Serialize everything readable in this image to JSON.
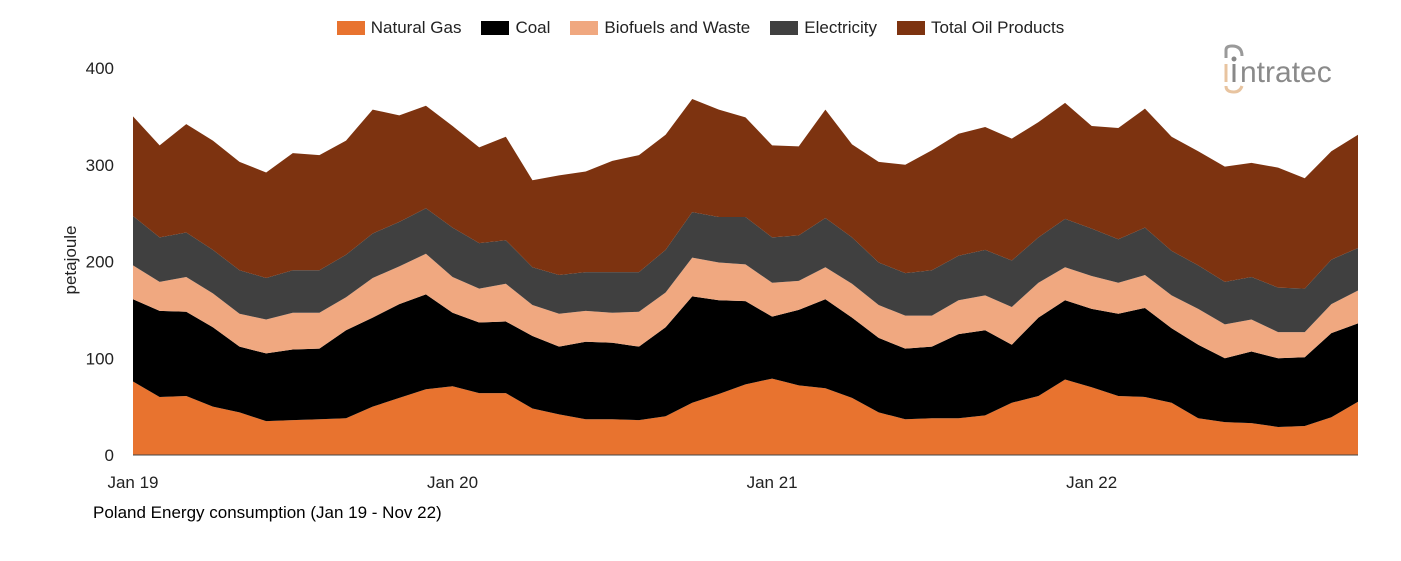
{
  "chart_data": {
    "type": "area",
    "stacked": true,
    "caption": "Poland Energy consumption (Jan 19 - Nov 22)",
    "ylabel": "petajoule",
    "xlabel": "",
    "ylim": [
      0,
      400
    ],
    "yticks": [
      0,
      100,
      200,
      300,
      400
    ],
    "xtick_labels": [
      "Jan 19",
      "Jan 20",
      "Jan 21",
      "Jan 22"
    ],
    "grid": false,
    "legend_position": "top",
    "categories": [
      "Jan 19",
      "Feb 19",
      "Mar 19",
      "Apr 19",
      "May 19",
      "Jun 19",
      "Jul 19",
      "Aug 19",
      "Sep 19",
      "Oct 19",
      "Nov 19",
      "Dec 19",
      "Jan 20",
      "Feb 20",
      "Mar 20",
      "Apr 20",
      "May 20",
      "Jun 20",
      "Jul 20",
      "Aug 20",
      "Sep 20",
      "Oct 20",
      "Nov 20",
      "Dec 20",
      "Jan 21",
      "Feb 21",
      "Mar 21",
      "Apr 21",
      "May 21",
      "Jun 21",
      "Jul 21",
      "Aug 21",
      "Sep 21",
      "Oct 21",
      "Nov 21",
      "Dec 21",
      "Jan 22",
      "Feb 22",
      "Mar 22",
      "Apr 22",
      "May 22",
      "Jun 22",
      "Jul 22",
      "Aug 22",
      "Sep 22",
      "Oct 22",
      "Nov 22"
    ],
    "series": [
      {
        "name": "Natural Gas",
        "color": "#E8732F",
        "values": [
          76,
          60,
          61,
          50,
          44,
          35,
          36,
          37,
          38,
          50,
          59,
          68,
          71,
          64,
          64,
          48,
          42,
          37,
          37,
          36,
          40,
          54,
          63,
          73,
          79,
          72,
          69,
          59,
          44,
          37,
          38,
          38,
          41,
          54,
          61,
          78,
          70,
          61,
          60,
          54,
          38,
          34,
          33,
          29,
          30,
          39,
          55
        ]
      },
      {
        "name": "Coal",
        "color": "#000000",
        "values": [
          85,
          89,
          87,
          82,
          68,
          70,
          73,
          73,
          91,
          92,
          97,
          98,
          76,
          73,
          74,
          75,
          70,
          80,
          79,
          76,
          92,
          110,
          97,
          86,
          64,
          78,
          92,
          83,
          77,
          73,
          74,
          87,
          88,
          60,
          81,
          82,
          81,
          85,
          92,
          77,
          76,
          66,
          74,
          71,
          71,
          87,
          81
        ]
      },
      {
        "name": "Biofuels and Waste",
        "color": "#F0A880",
        "values": [
          35,
          30,
          36,
          35,
          34,
          35,
          38,
          37,
          34,
          41,
          39,
          42,
          37,
          35,
          39,
          32,
          34,
          32,
          31,
          36,
          36,
          40,
          39,
          38,
          35,
          30,
          33,
          35,
          34,
          34,
          32,
          35,
          36,
          39,
          36,
          34,
          34,
          32,
          34,
          34,
          37,
          35,
          33,
          27,
          26,
          30,
          34
        ]
      },
      {
        "name": "Electricity",
        "color": "#404040",
        "values": [
          51,
          46,
          46,
          45,
          45,
          43,
          44,
          44,
          44,
          46,
          46,
          47,
          51,
          47,
          45,
          39,
          40,
          40,
          42,
          41,
          44,
          47,
          47,
          49,
          47,
          47,
          51,
          48,
          44,
          44,
          47,
          46,
          47,
          48,
          47,
          50,
          49,
          45,
          49,
          46,
          45,
          44,
          44,
          46,
          45,
          46,
          44
        ]
      },
      {
        "name": "Total Oil Products",
        "color": "#7D3310",
        "values": [
          103,
          95,
          112,
          113,
          112,
          109,
          121,
          119,
          118,
          128,
          110,
          106,
          105,
          99,
          107,
          90,
          103,
          104,
          115,
          121,
          119,
          117,
          111,
          103,
          95,
          92,
          112,
          96,
          104,
          112,
          124,
          126,
          127,
          126,
          119,
          120,
          106,
          115,
          123,
          118,
          118,
          119,
          118,
          124,
          114,
          112,
          117
        ]
      }
    ]
  },
  "logo": {
    "text": "intratec"
  }
}
